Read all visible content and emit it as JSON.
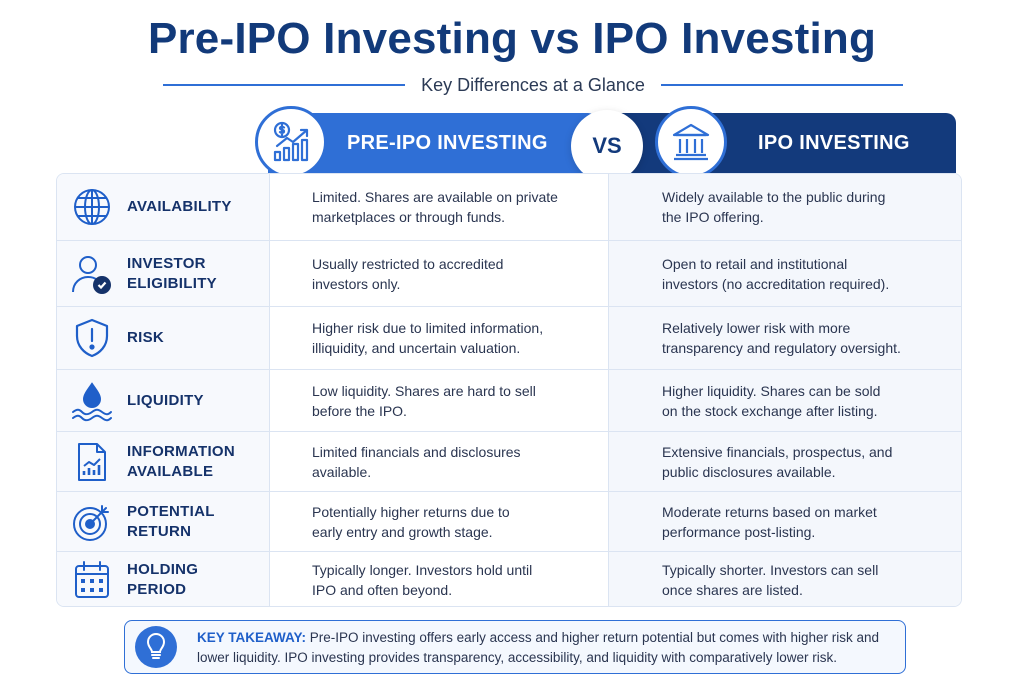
{
  "title": "Pre-IPO Investing vs IPO Investing",
  "subtitle": "Key Differences at a Glance",
  "columns": {
    "pre_ipo": {
      "label": "PRE-IPO INVESTING",
      "icon": "growth-chart-dollar-icon"
    },
    "vs": "VS",
    "ipo": {
      "label": "IPO INVESTING",
      "icon": "bank-building-icon"
    }
  },
  "colors": {
    "primary": "#2f6fd6",
    "dark": "#133a7c",
    "title": "#123a7a"
  },
  "rows": [
    {
      "label": "AVAILABILITY",
      "icon": "globe-icon",
      "pre": "Limited. Shares are available on private\nmarketplaces or through funds.",
      "ipo": "Widely available to the public during\nthe IPO offering."
    },
    {
      "label": "INVESTOR\nELIGIBILITY",
      "icon": "user-check-icon",
      "pre": "Usually restricted to accredited\ninvestors only.",
      "ipo": "Open to retail and institutional\ninvestors (no accreditation required)."
    },
    {
      "label": "RISK",
      "icon": "shield-alert-icon",
      "pre": "Higher risk due to limited information,\nilliquidity, and uncertain valuation.",
      "ipo": "Relatively lower risk with more\ntransparency and regulatory oversight."
    },
    {
      "label": "LIQUIDITY",
      "icon": "water-drop-icon",
      "pre": "Low liquidity. Shares are hard to sell\nbefore the IPO.",
      "ipo": "Higher liquidity. Shares can be sold\non the stock exchange after listing."
    },
    {
      "label": "INFORMATION\nAVAILABLE",
      "icon": "document-chart-icon",
      "pre": "Limited financials and disclosures\navailable.",
      "ipo": "Extensive financials, prospectus, and\npublic disclosures available."
    },
    {
      "label": "POTENTIAL\nRETURN",
      "icon": "target-icon",
      "pre": "Potentially higher returns due to\nearly entry and growth stage.",
      "ipo": "Moderate returns based on market\nperformance post-listing."
    },
    {
      "label": "HOLDING\nPERIOD",
      "icon": "calendar-icon",
      "pre": "Typically longer. Investors hold until\nIPO and often beyond.",
      "ipo": "Typically shorter. Investors can sell\nonce shares are listed."
    }
  ],
  "takeaway": {
    "heading": "KEY TAKEAWAY:",
    "text": " Pre-IPO investing offers early access and higher return potential but comes with higher risk and lower liquidity. IPO investing provides transparency, accessibility, and liquidity with comparatively lower risk.",
    "icon": "lightbulb-icon"
  }
}
